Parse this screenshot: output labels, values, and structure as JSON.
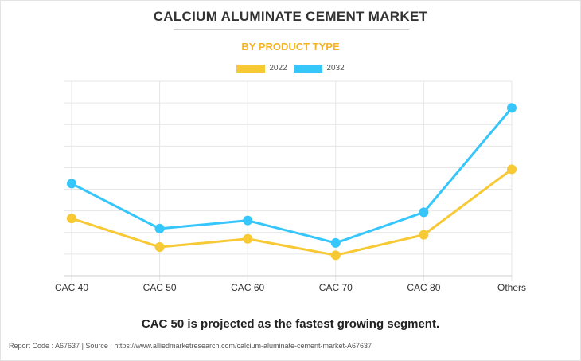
{
  "title": "CALCIUM ALUMINATE CEMENT MARKET",
  "subtitle": "BY PRODUCT TYPE",
  "footnote": "CAC 50 is projected as the fastest growing segment.",
  "source": "Report Code : A67637  |  Source : https://www.alliedmarketresearch.com/calcium-aluminate-cement-market-A67637",
  "colors": {
    "2022": "#f6c935",
    "2032": "#36c6fb",
    "title": "#333333",
    "subtitle": "#f5b324"
  },
  "chart_data": {
    "type": "line",
    "title": "CALCIUM ALUMINATE CEMENT MARKET",
    "subtitle": "BY PRODUCT TYPE",
    "categories": [
      "CAC 40",
      "CAC 50",
      "CAC 60",
      "CAC 70",
      "CAC 80",
      "Others"
    ],
    "series": [
      {
        "name": "2022",
        "values": [
          28,
          14,
          18,
          10,
          20,
          52
        ]
      },
      {
        "name": "2032",
        "values": [
          45,
          23,
          27,
          16,
          31,
          82
        ]
      }
    ],
    "ylim": [
      0,
      95
    ],
    "yticks_shown": false,
    "grid": true,
    "legend": "top-center"
  }
}
